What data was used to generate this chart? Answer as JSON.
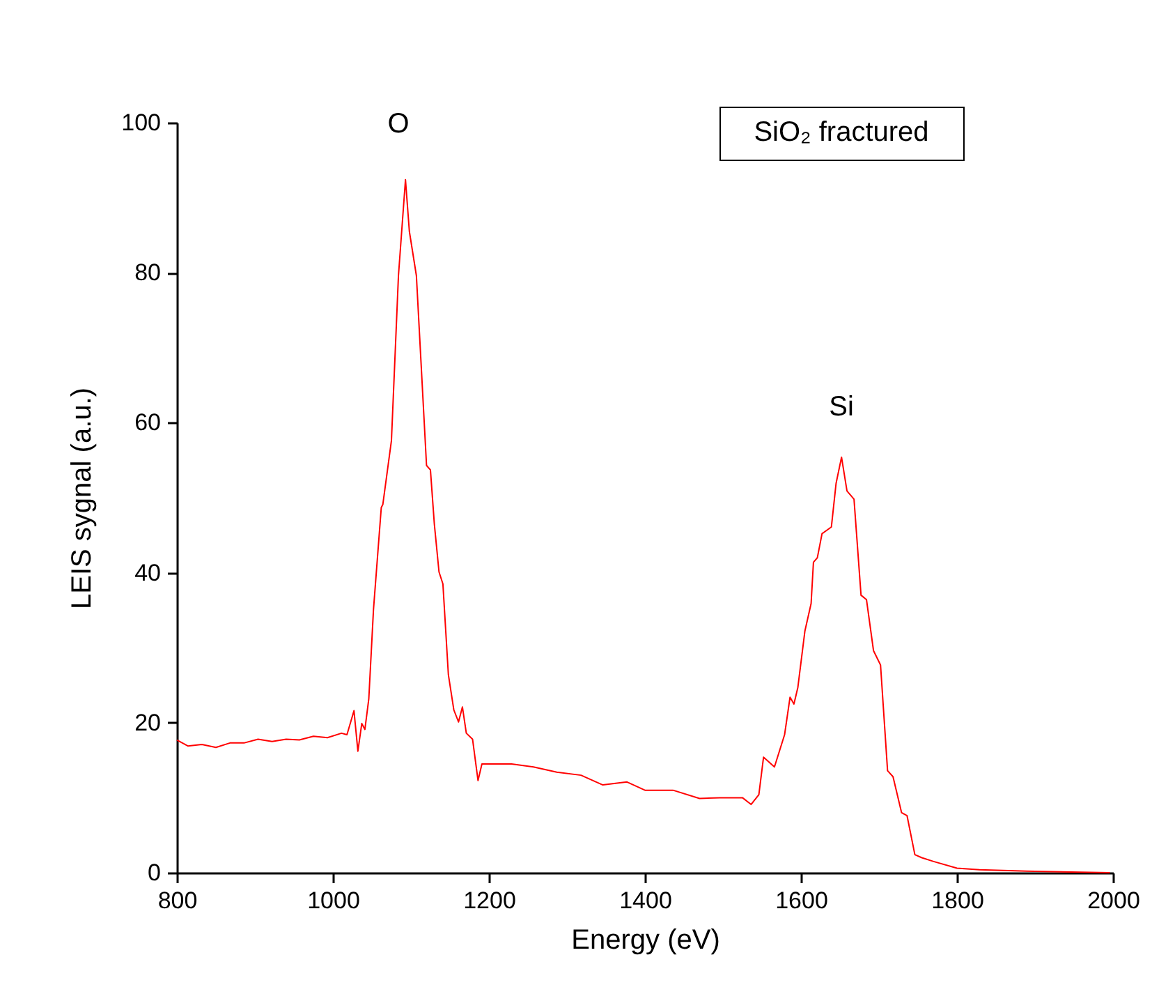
{
  "chart_data": {
    "type": "line",
    "xlabel": "Energy (eV)",
    "ylabel": "LEIS sygnal (a.u.)",
    "x": [
      800,
      814,
      832,
      850,
      868,
      886,
      904,
      922,
      940,
      957,
      975,
      993,
      1011,
      1018,
      1027,
      1032,
      1037,
      1041,
      1046,
      1052,
      1062,
      1064,
      1075,
      1084,
      1093,
      1098,
      1107,
      1120,
      1125,
      1130,
      1136,
      1141,
      1148,
      1155,
      1161,
      1166,
      1171,
      1179,
      1186,
      1191,
      1198,
      1229,
      1257,
      1287,
      1318,
      1346,
      1377,
      1400,
      1436,
      1470,
      1496,
      1525,
      1536,
      1546,
      1552,
      1566,
      1579,
      1586,
      1591,
      1596,
      1605,
      1613,
      1616,
      1621,
      1627,
      1639,
      1645,
      1652,
      1659,
      1668,
      1677,
      1684,
      1693,
      1702,
      1711,
      1718,
      1729,
      1736,
      1746,
      1755,
      1770,
      1800,
      1829,
      1889,
      1996
    ],
    "series": [
      {
        "color": "#ff0000",
        "values": [
          17.7,
          16.9,
          17.1,
          16.7,
          17.3,
          17.3,
          17.8,
          17.5,
          17.8,
          17.7,
          18.2,
          18.0,
          18.6,
          18.4,
          21.6,
          16.2,
          19.9,
          19.1,
          23.2,
          35.1,
          48.7,
          49.1,
          57.6,
          79.6,
          92.4,
          85.5,
          79.6,
          54.3,
          53.7,
          46.5,
          40.1,
          38.5,
          26.4,
          21.7,
          20.1,
          22.1,
          18.6,
          17.8,
          12.3,
          14.5,
          14.5,
          14.5,
          14.1,
          13.4,
          13.0,
          11.7,
          12.1,
          11.0,
          11.0,
          9.9,
          10.0,
          10.0,
          9.1,
          10.4,
          15.4,
          14.1,
          18.4,
          23.4,
          22.5,
          24.7,
          32.2,
          35.9,
          41.4,
          42.0,
          45.2,
          46.1,
          51.9,
          55.4,
          50.9,
          49.8,
          37.0,
          36.4,
          29.6,
          27.7,
          13.6,
          12.8,
          8.0,
          7.6,
          2.4,
          2.0,
          1.5,
          0.6,
          0.4,
          0.2,
          0
        ]
      }
    ],
    "xlim": [
      800,
      2000
    ],
    "xticks": [
      800,
      1000,
      1200,
      1400,
      1600,
      1800,
      2000
    ],
    "ylim": [
      0,
      100
    ],
    "yticks": [
      0,
      20,
      40,
      60,
      80,
      100
    ],
    "annotations": [
      "O",
      "Si",
      "SiO₂ fractured"
    ]
  }
}
